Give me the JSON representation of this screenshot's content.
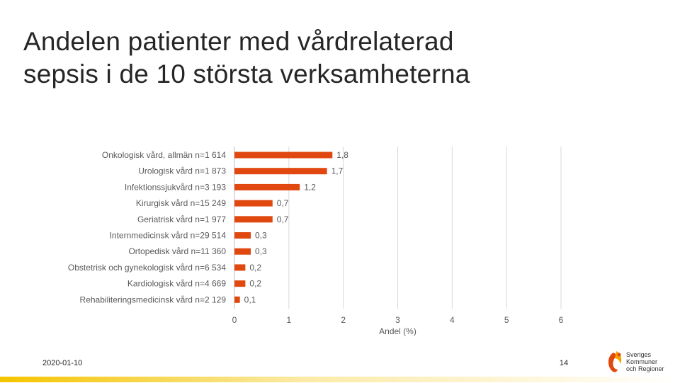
{
  "title": {
    "line1": "Andelen patienter med vårdrelaterad",
    "line2": "sepsis i de 10 största verksamheterna"
  },
  "chart_data": {
    "type": "bar",
    "orientation": "horizontal",
    "categories": [
      "Onkologisk vård, allmän n=1 614",
      "Urologisk vård n=1 873",
      "Infektionssjukvård n=3 193",
      "Kirurgisk vård n=15 249",
      "Geriatrisk vård n=1 977",
      "Internmedicinsk vård n=29 514",
      "Ortopedisk vård n=11 360",
      "Obstetrisk och gynekologisk vård n=6 534",
      "Kardiologisk vård n=4 669",
      "Rehabiliteringsmedicinsk vård n=2 129"
    ],
    "values": [
      1.8,
      1.7,
      1.2,
      0.7,
      0.7,
      0.3,
      0.3,
      0.2,
      0.2,
      0.1
    ],
    "value_labels": [
      "1,8",
      "1,7",
      "1,2",
      "0,7",
      "0,7",
      "0,3",
      "0,3",
      "0,2",
      "0,2",
      "0,1"
    ],
    "xlabel": "Andel (%)",
    "xlim": [
      0,
      6
    ],
    "x_ticks": [
      "0",
      "1",
      "2",
      "3",
      "4",
      "5",
      "6"
    ],
    "grid": true,
    "bar_color": "#e0480f"
  },
  "footer": {
    "date": "2020-01-10",
    "page": "14",
    "logo_lines": [
      "Sveriges",
      "Kommuner",
      "och Regioner"
    ]
  },
  "colors": {
    "accent": "#e0480f",
    "footer_bar": "#f5c400",
    "logo_primary": "#e0480f"
  }
}
